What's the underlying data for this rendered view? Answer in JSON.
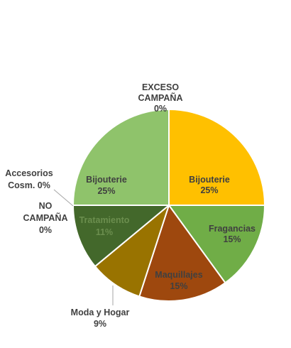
{
  "chart_data": {
    "type": "pie",
    "title": "",
    "legend": "none",
    "slices": [
      {
        "name": "EXCESO CAMPAÑA",
        "value": 0,
        "label_lines": [
          "EXCESO",
          "CAMPAÑA",
          "0%"
        ],
        "color": "#FFC000"
      },
      {
        "name": "Bijouterie",
        "value": 25,
        "label_lines": [
          "Bijouterie",
          "25%"
        ],
        "color": "#FFC000"
      },
      {
        "name": "Fragancias",
        "value": 15,
        "label_lines": [
          "Fragancias",
          "15%"
        ],
        "color": "#70AD47"
      },
      {
        "name": "Maquillajes",
        "value": 15,
        "label_lines": [
          "Maquillajes",
          "15%"
        ],
        "color": "#9E480E"
      },
      {
        "name": "Moda y Hogar",
        "value": 9,
        "label_lines": [
          "Moda y Hogar",
          "9%"
        ],
        "color": "#997300"
      },
      {
        "name": "Tratamiento",
        "value": 11,
        "label_lines": [
          "Tratamiento",
          "11%"
        ],
        "color": "#43682B"
      },
      {
        "name": "NO CAMPAÑA",
        "value": 0,
        "label_lines": [
          "NO",
          "CAMPAÑA",
          "0%"
        ],
        "color": "#43682B"
      },
      {
        "name": "Accesorios Cosm.",
        "value": 0,
        "label_lines": [
          "Accesorios",
          "Cosm. 0%"
        ],
        "color": "#8FC36B"
      },
      {
        "name": "Bijouterie",
        "value": 25,
        "label_lines": [
          "Bijouterie",
          "25%"
        ],
        "color": "#8FC36B"
      }
    ]
  }
}
